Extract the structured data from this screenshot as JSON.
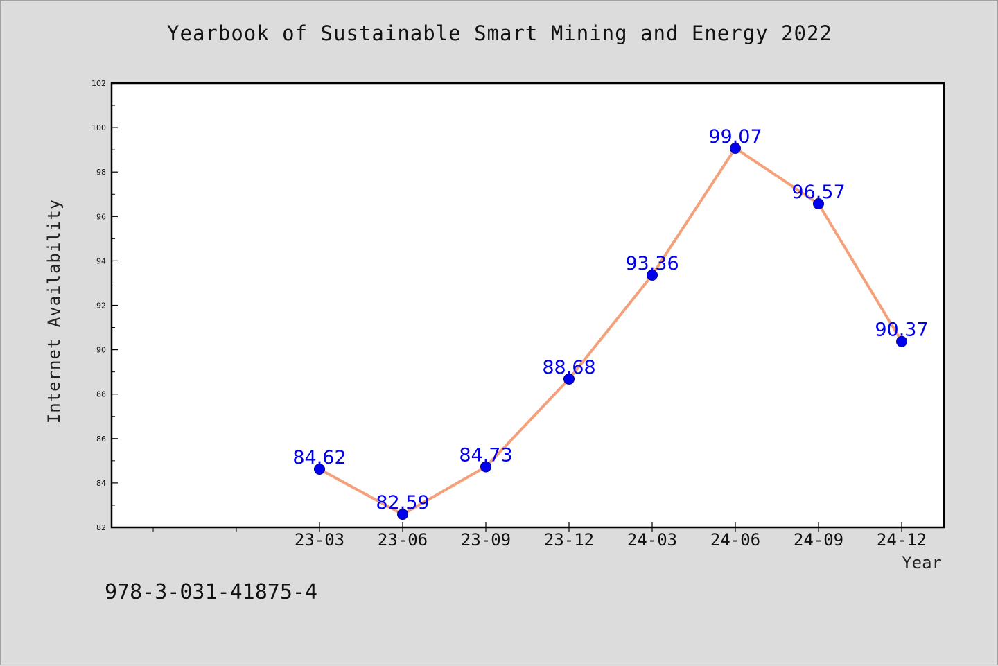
{
  "chart_data": {
    "type": "line",
    "title": "Yearbook of Sustainable Smart Mining and Energy 2022",
    "xlabel": "Year",
    "ylabel": "Internet Availability",
    "ylim": [
      82,
      102
    ],
    "yticks": [
      82,
      84,
      86,
      88,
      90,
      92,
      94,
      96,
      98,
      100,
      102
    ],
    "categories": [
      "23-03",
      "23-06",
      "23-09",
      "23-12",
      "24-03",
      "24-06",
      "24-09",
      "24-12"
    ],
    "series": [
      {
        "values": [
          84.62,
          82.59,
          84.73,
          88.68,
          93.36,
          99.07,
          96.57,
          90.37
        ],
        "labels": [
          "84.62",
          "82.59",
          "84.73",
          "88.68",
          "93.36",
          "99.07",
          "96.57",
          "90.37"
        ],
        "line_color": "#f4a07a",
        "marker_color": "#0000ee"
      }
    ],
    "grid": false,
    "legend": "none"
  },
  "footer": {
    "isbn": "978-3-031-41875-4"
  }
}
